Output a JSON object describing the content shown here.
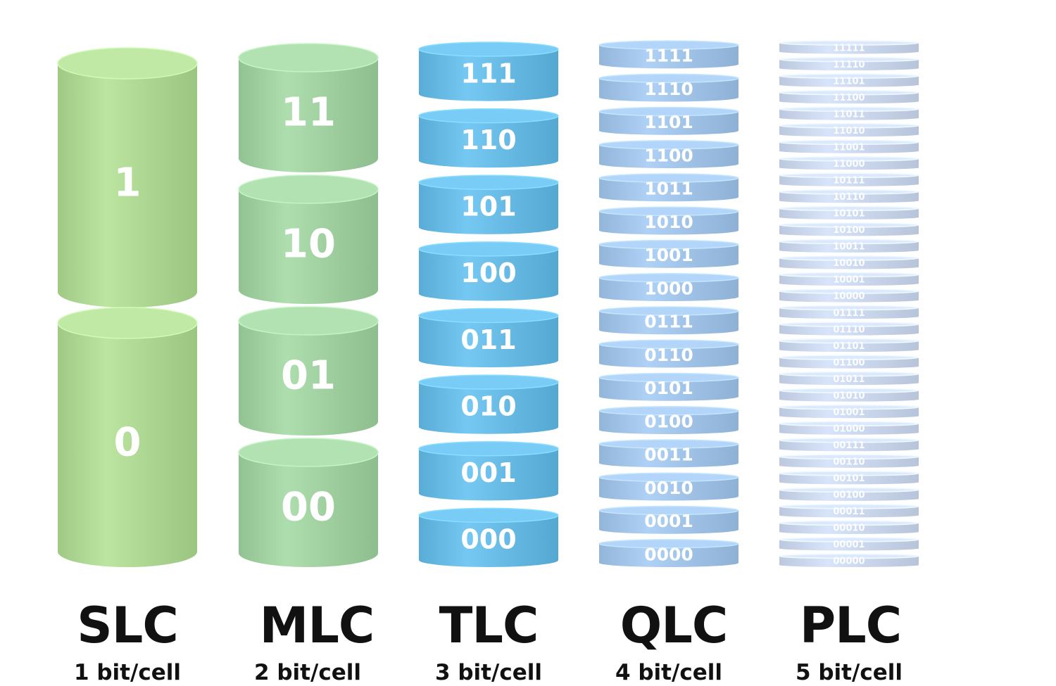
{
  "colors": {
    "slc": "#a9d38e",
    "mlc": "#9ccc9c",
    "tlc": "#62b6e0",
    "qlc": "#9cbfe3",
    "plc": "#c6d2e8"
  },
  "columns": [
    {
      "key": "slc",
      "title": "SLC",
      "subtitle": "1 bit/cell",
      "bits_per_cell": 1,
      "states": [
        "1",
        "0"
      ]
    },
    {
      "key": "mlc",
      "title": "MLC",
      "subtitle": "2 bit/cell",
      "bits_per_cell": 2,
      "states": [
        "11",
        "10",
        "01",
        "00"
      ]
    },
    {
      "key": "tlc",
      "title": "TLC",
      "subtitle": "3 bit/cell",
      "bits_per_cell": 3,
      "states": [
        "111",
        "110",
        "101",
        "100",
        "011",
        "010",
        "001",
        "000"
      ]
    },
    {
      "key": "qlc",
      "title": "QLC",
      "subtitle": "4 bit/cell",
      "bits_per_cell": 4,
      "states": [
        "1111",
        "1110",
        "1101",
        "1100",
        "1011",
        "1010",
        "1001",
        "1000",
        "0111",
        "0110",
        "0101",
        "0100",
        "0011",
        "0010",
        "0001",
        "0000"
      ]
    },
    {
      "key": "plc",
      "title": "PLC",
      "subtitle": "5 bit/cell",
      "bits_per_cell": 5,
      "states": [
        "11111",
        "11110",
        "11101",
        "11100",
        "11011",
        "11010",
        "11001",
        "11000",
        "10111",
        "10110",
        "10101",
        "10100",
        "10011",
        "10010",
        "10001",
        "10000",
        "01111",
        "01110",
        "01101",
        "01100",
        "01011",
        "01010",
        "01001",
        "01000",
        "00111",
        "00110",
        "00101",
        "00100",
        "00011",
        "00010",
        "00001",
        "00000"
      ]
    }
  ]
}
